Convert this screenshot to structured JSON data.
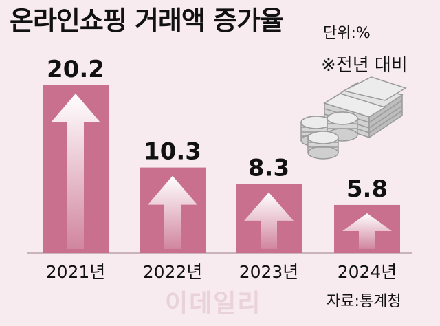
{
  "header": {
    "title": "온라인쇼핑 거래액 증가율",
    "unit": "단위:%",
    "note": "※전년 대비"
  },
  "footer": {
    "source": "자료:통계청",
    "watermark": "이데일리"
  },
  "colors": {
    "background": "#f7ebef",
    "bar": "#c9708f",
    "arrow": "#ffffff",
    "baseline": "#c9b4bb"
  },
  "chart_data": {
    "type": "bar",
    "categories": [
      "2021년",
      "2022년",
      "2023년",
      "2024년"
    ],
    "values": [
      20.2,
      10.3,
      8.3,
      5.8
    ],
    "value_labels": [
      "20.2",
      "10.3",
      "8.3",
      "5.8"
    ],
    "title": "온라인쇼핑 거래액 증가율",
    "unit": "단위:%",
    "ylim": [
      0,
      20.2
    ],
    "grid": false,
    "legend": "none"
  },
  "illustration": {
    "icon": "money-stacks-and-coins-icon"
  }
}
